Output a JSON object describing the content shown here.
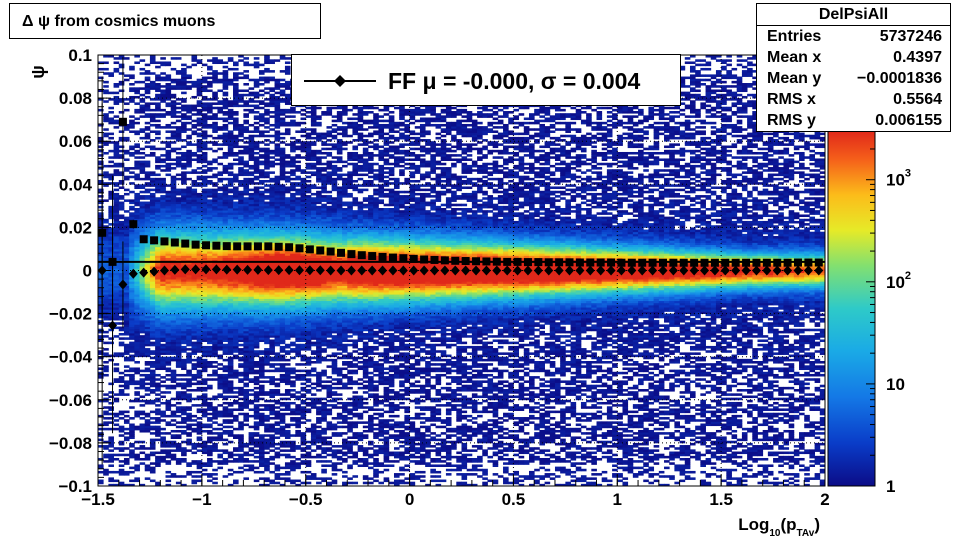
{
  "chart_data": {
    "type": "heatmap",
    "title": "Δ ψ from cosmics muons",
    "histogram_name": "DelPsiAll",
    "xlabel": "Log10(pTAv)",
    "xlabel_parts": {
      "base": "Log",
      "sub1": "10",
      "mid": "(p",
      "sub2": "TAv",
      "end": ")"
    },
    "ylabel": "ψ",
    "xlim": [
      -1.5,
      2
    ],
    "ylim": [
      -0.1,
      0.1
    ],
    "x_ticks": [
      "−1.5",
      "−1",
      "−0.5",
      "0",
      "0.5",
      "1",
      "1.5",
      "2"
    ],
    "x_tick_values": [
      -1.5,
      -1,
      -0.5,
      0,
      0.5,
      1,
      1.5,
      2
    ],
    "y_ticks": [
      "−0.1",
      "−0.08",
      "−0.06",
      "−0.04",
      "−0.02",
      "0",
      "0.02",
      "0.04",
      "0.06",
      "0.08",
      "0.1"
    ],
    "y_tick_values": [
      -0.1,
      -0.08,
      -0.06,
      -0.04,
      -0.02,
      0,
      0.02,
      0.04,
      0.06,
      0.08,
      0.1
    ],
    "z_scale": "log",
    "zlim": [
      1,
      3000
    ],
    "z_ticks": [
      {
        "value": 1,
        "label": "1",
        "exp": ""
      },
      {
        "value": 10,
        "label": "10",
        "exp": ""
      },
      {
        "value": 100,
        "label": "10",
        "exp": "2"
      },
      {
        "value": 1000,
        "label": "10",
        "exp": "3"
      }
    ],
    "grid": true,
    "stats": [
      {
        "key": "Entries",
        "value": "5737246"
      },
      {
        "key": "Mean x",
        "value": "0.4397"
      },
      {
        "key": "Mean y",
        "value": "−0.0001836"
      },
      {
        "key": "RMS x",
        "value": "0.5564"
      },
      {
        "key": "RMS y",
        "value": "0.006155"
      }
    ],
    "fit_legend": {
      "label": "FF μ = -0.000, σ =   0.004"
    },
    "fit_line": {
      "y": 0.004
    },
    "series": [
      {
        "marker": "square",
        "x": [
          -1.48,
          -1.43,
          -1.38,
          -1.33,
          -1.28,
          -1.23,
          -1.18,
          -1.13,
          -1.08,
          -1.03,
          -0.98,
          -0.93,
          -0.88,
          -0.83,
          -0.78,
          -0.73,
          -0.68,
          -0.63,
          -0.58,
          -0.53,
          -0.48,
          -0.43,
          -0.38,
          -0.33,
          -0.28,
          -0.23,
          -0.18,
          -0.13,
          -0.08,
          -0.03,
          0.02,
          0.07,
          0.12,
          0.17,
          0.22,
          0.27,
          0.32,
          0.37,
          0.42,
          0.47,
          0.52,
          0.57,
          0.62,
          0.67,
          0.72,
          0.77,
          0.82,
          0.87,
          0.92,
          0.97,
          1.02,
          1.07,
          1.12,
          1.17,
          1.22,
          1.27,
          1.32,
          1.37,
          1.42,
          1.47,
          1.52,
          1.57,
          1.62,
          1.67,
          1.72,
          1.77,
          1.82,
          1.87,
          1.92,
          1.97
        ],
        "y": [
          0.0175,
          0.004,
          0.069,
          0.0215,
          0.0145,
          0.014,
          0.0135,
          0.013,
          0.0125,
          0.012,
          0.0117,
          0.0115,
          0.0113,
          0.0112,
          0.0112,
          0.0112,
          0.0112,
          0.011,
          0.0108,
          0.0103,
          0.0098,
          0.0093,
          0.0088,
          0.0082,
          0.0076,
          0.0071,
          0.0067,
          0.0063,
          0.006,
          0.0057,
          0.0054,
          0.0051,
          0.0049,
          0.0047,
          0.0045,
          0.0044,
          0.0043,
          0.0042,
          0.0041,
          0.004,
          0.004,
          0.0039,
          0.0039,
          0.0038,
          0.0038,
          0.0038,
          0.0037,
          0.0037,
          0.0037,
          0.0037,
          0.0036,
          0.0036,
          0.0036,
          0.0036,
          0.0036,
          0.0036,
          0.0036,
          0.0036,
          0.0036,
          0.0036,
          0.0036,
          0.0036,
          0.0036,
          0.0036,
          0.0036,
          0.0036,
          0.0036,
          0.0037,
          0.0037,
          0.0037
        ],
        "yerr": [
          0.06,
          0.04,
          0.03,
          0.002,
          0.001,
          0.0008,
          0.0006,
          0.0005,
          0.0004,
          0.0003,
          0.0003,
          0.0002,
          0.0002,
          0.0002,
          0.0002,
          0.0002,
          0.0002,
          0.0002,
          0.0002,
          0.0002,
          0.0002,
          0.0002,
          0.0002,
          0.0002,
          0.0002,
          0.0002,
          0.0002,
          0.0002,
          0.0002,
          0.0002,
          0.0002,
          0.0002,
          0.0002,
          0.0002,
          0.0002,
          0.0002,
          0.0002,
          0.0002,
          0.0002,
          0.0002,
          0.0002,
          0.0002,
          0.0002,
          0.0002,
          0.0002,
          0.0002,
          0.0002,
          0.0002,
          0.0002,
          0.0002,
          0.0002,
          0.0002,
          0.0002,
          0.0002,
          0.0002,
          0.0002,
          0.0002,
          0.0002,
          0.0002,
          0.0002,
          0.0002,
          0.0002,
          0.0002,
          0.0002,
          0.0002,
          0.0002,
          0.0002,
          0.0002,
          0.0002,
          0.0002
        ]
      },
      {
        "marker": "diamond",
        "x": [
          -1.48,
          -1.43,
          -1.38,
          -1.33,
          -1.28,
          -1.23,
          -1.18,
          -1.13,
          -1.08,
          -1.03,
          -0.98,
          -0.93,
          -0.88,
          -0.83,
          -0.78,
          -0.73,
          -0.68,
          -0.63,
          -0.58,
          -0.53,
          -0.48,
          -0.43,
          -0.38,
          -0.33,
          -0.28,
          -0.23,
          -0.18,
          -0.13,
          -0.08,
          -0.03,
          0.02,
          0.07,
          0.12,
          0.17,
          0.22,
          0.27,
          0.32,
          0.37,
          0.42,
          0.47,
          0.52,
          0.57,
          0.62,
          0.67,
          0.72,
          0.77,
          0.82,
          0.87,
          0.92,
          0.97,
          1.02,
          1.07,
          1.12,
          1.17,
          1.22,
          1.27,
          1.32,
          1.37,
          1.42,
          1.47,
          1.52,
          1.57,
          1.62,
          1.67,
          1.72,
          1.77,
          1.82,
          1.87,
          1.92,
          1.97
        ],
        "y": [
          0.0,
          -0.0255,
          -0.0065,
          -0.0015,
          -0.001,
          -0.0005,
          0.0,
          0.0003,
          0.0005,
          0.0005,
          0.0005,
          0.0005,
          0.0004,
          0.0004,
          0.0003,
          0.0003,
          0.0002,
          0.0002,
          0.0002,
          0.0001,
          0.0001,
          0.0001,
          0.0,
          0.0,
          0.0,
          0.0,
          0.0,
          0.0,
          0.0,
          0.0,
          0.0,
          0.0,
          0.0,
          0.0,
          0.0,
          0.0,
          0.0,
          0.0,
          0.0,
          0.0,
          0.0,
          0.0,
          0.0,
          0.0,
          0.0,
          0.0,
          0.0,
          0.0,
          0.0,
          0.0,
          0.0,
          0.0,
          0.0,
          0.0,
          0.0,
          0.0,
          0.0,
          0.0,
          0.0,
          0.0,
          0.0,
          0.0,
          0.0,
          0.0,
          0.0,
          0.0,
          0.0,
          0.0,
          0.0,
          0.0
        ],
        "yerr": [
          0.09,
          0.05,
          0.02,
          0.001,
          0.0006,
          0.0005,
          0.0004,
          0.0003,
          0.0003,
          0.0002,
          0.0002,
          0.0002,
          0.0002,
          0.0002,
          0.0002,
          0.0002,
          0.0002,
          0.0002,
          0.0002,
          0.0002,
          0.0002,
          0.0002,
          0.0002,
          0.0002,
          0.0002,
          0.0002,
          0.0002,
          0.0002,
          0.0002,
          0.0002,
          0.0002,
          0.0002,
          0.0002,
          0.0002,
          0.0002,
          0.0002,
          0.0002,
          0.0002,
          0.0002,
          0.0002,
          0.0002,
          0.0002,
          0.0002,
          0.0002,
          0.0002,
          0.0002,
          0.0002,
          0.0002,
          0.0002,
          0.0002,
          0.0002,
          0.0002,
          0.0002,
          0.0002,
          0.0002,
          0.0002,
          0.0002,
          0.0002,
          0.0002,
          0.0002,
          0.0002,
          0.0002,
          0.0002,
          0.0002,
          0.0002,
          0.0002,
          0.0002,
          0.0002,
          0.0002,
          0.0002
        ]
      }
    ]
  }
}
